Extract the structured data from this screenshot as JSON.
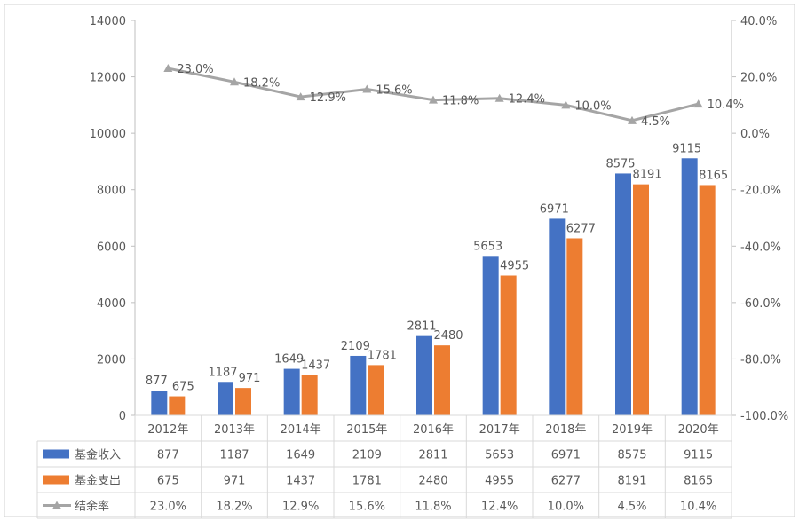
{
  "chart_data": {
    "type": "bar",
    "categories": [
      "2012年",
      "2013年",
      "2014年",
      "2015年",
      "2016年",
      "2017年",
      "2018年",
      "2019年",
      "2020年"
    ],
    "series": [
      {
        "name": "基金收入",
        "type": "bar",
        "axis": "left",
        "color": "#4472C4",
        "values": [
          877,
          1187,
          1649,
          2109,
          2811,
          5653,
          6971,
          8575,
          9115
        ]
      },
      {
        "name": "基金支出",
        "type": "bar",
        "axis": "left",
        "color": "#ED7D31",
        "values": [
          675,
          971,
          1437,
          1781,
          2480,
          4955,
          6277,
          8191,
          8165
        ]
      },
      {
        "name": "结余率",
        "type": "line",
        "axis": "right",
        "color": "#A5A5A5",
        "values": [
          23.0,
          18.2,
          12.9,
          15.6,
          11.8,
          12.4,
          10.0,
          4.5,
          10.4
        ],
        "labels": [
          "23.0%",
          "18.2%",
          "12.9%",
          "15.6%",
          "11.8%",
          "12.4%",
          "10.0%",
          "4.5%",
          "10.4%"
        ]
      }
    ],
    "left_axis": {
      "min": 0,
      "max": 14000,
      "step": 2000,
      "ticks": [
        "0",
        "2000",
        "4000",
        "6000",
        "8000",
        "10000",
        "12000",
        "14000"
      ]
    },
    "right_axis": {
      "min": -100,
      "max": 40,
      "step": 20,
      "ticks": [
        "-100.0%",
        "-80.0%",
        "-60.0%",
        "-40.0%",
        "-20.0%",
        "0.0%",
        "20.0%",
        "40.0%"
      ]
    },
    "data_table": true,
    "grid": false,
    "legend": "in data table"
  }
}
